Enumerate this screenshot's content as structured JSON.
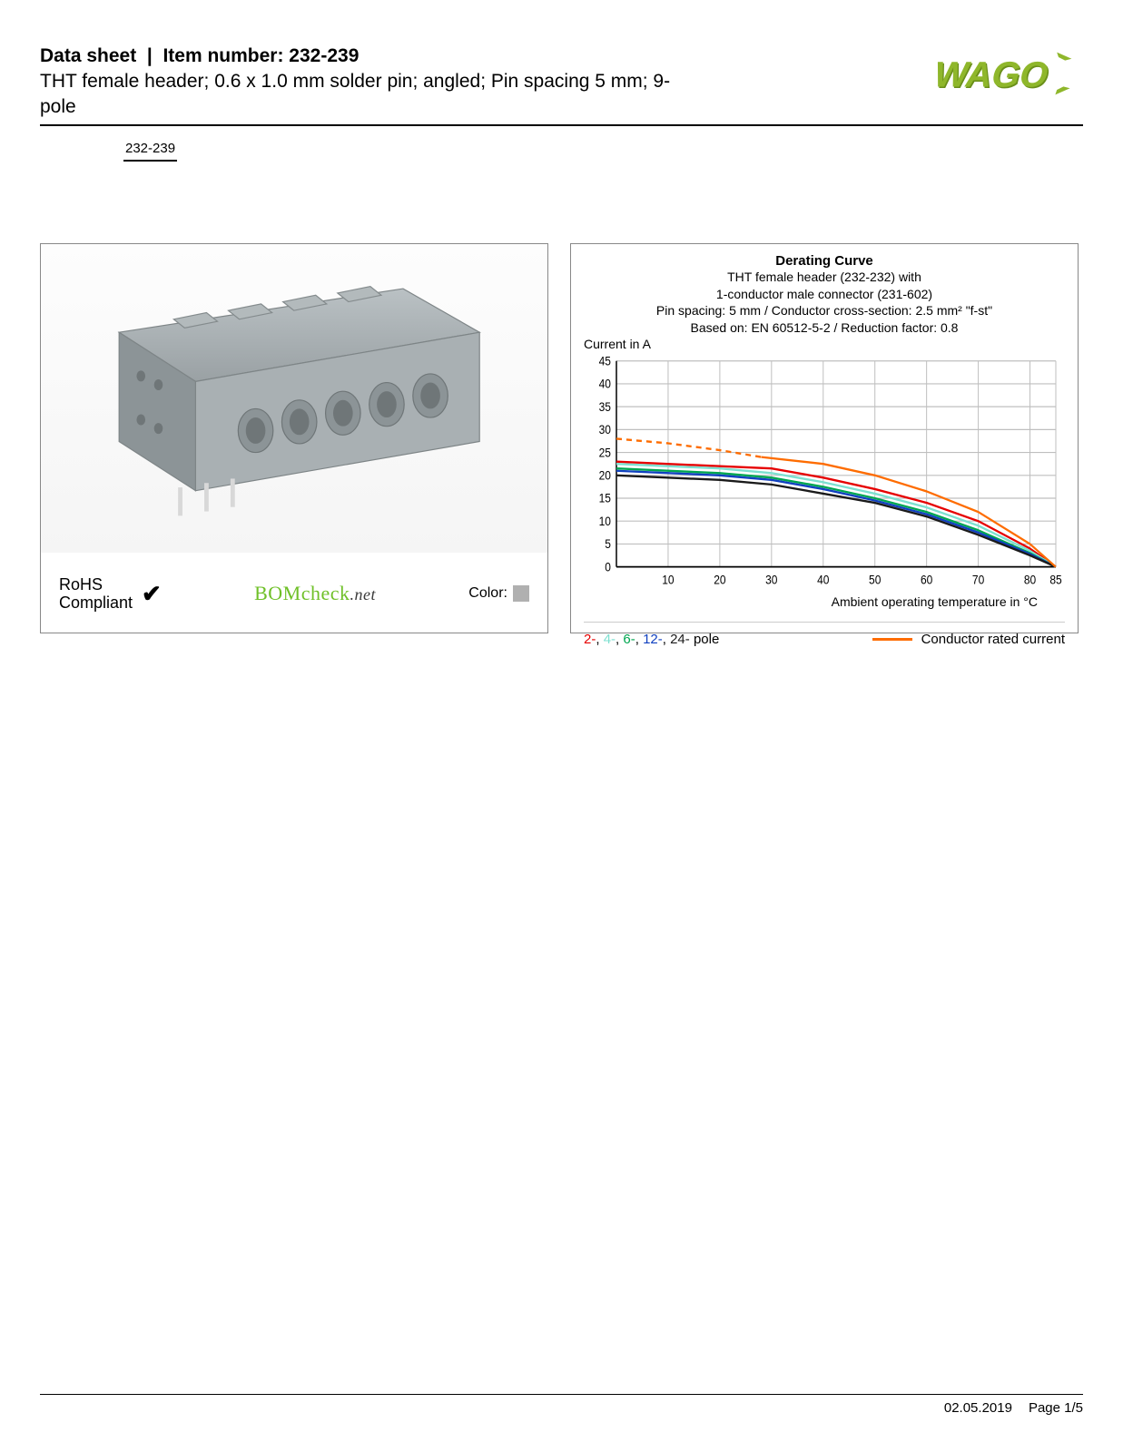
{
  "header": {
    "ds_label": "Data sheet",
    "item_label": "Item number: 232-239",
    "description": "THT female header; 0.6 x 1.0 mm solder pin; angled; Pin spacing 5 mm; 9-pole",
    "badge": "232-239"
  },
  "logo": {
    "text": "WAGO",
    "color": "#8fb72b",
    "shadow": "#6a8f1a"
  },
  "left_panel": {
    "rohs_line1": "RoHS",
    "rohs_line2": "Compliant",
    "check": "✔",
    "bomcheck_main": "BOMcheck",
    "bomcheck_net": ".net",
    "color_label": "Color:",
    "swatch_color": "#b0b0b0",
    "product_render": {
      "body_color": "#a9b0b3",
      "body_shade": "#8c9497",
      "pin_color": "#d8d8d8"
    }
  },
  "chart": {
    "title": "Derating Curve",
    "sub1": "THT female header (232-232) with",
    "sub2": "1-conductor male connector (231-602)",
    "sub3": "Pin spacing: 5 mm / Conductor cross-section: 2.5 mm² \"f-st\"",
    "sub4": "Based on: EN 60512-5-2 / Reduction factor: 0.8",
    "ylabel": "Current in A",
    "xlabel": "Ambient operating temperature in °C",
    "ylim": [
      0,
      45
    ],
    "ytick_step": 5,
    "xlim": [
      0,
      85
    ],
    "xticks": [
      10,
      20,
      30,
      40,
      50,
      60,
      70,
      80,
      85
    ],
    "grid_color": "#bfbfbf",
    "plot_bg": "#ffffff",
    "axis_color": "#000000",
    "series": [
      {
        "name": "2-pole",
        "color": "#e60000",
        "dash": false,
        "points": [
          [
            0,
            23
          ],
          [
            20,
            22
          ],
          [
            30,
            21.5
          ],
          [
            40,
            19.5
          ],
          [
            50,
            17
          ],
          [
            60,
            14
          ],
          [
            70,
            10
          ],
          [
            80,
            4
          ],
          [
            85,
            0
          ]
        ]
      },
      {
        "name": "4-pole",
        "color": "#7de0d0",
        "dash": false,
        "points": [
          [
            0,
            22.5
          ],
          [
            20,
            21.5
          ],
          [
            30,
            20.5
          ],
          [
            40,
            18.5
          ],
          [
            50,
            16
          ],
          [
            60,
            13
          ],
          [
            70,
            9
          ],
          [
            80,
            3.5
          ],
          [
            85,
            0
          ]
        ]
      },
      {
        "name": "6-pole",
        "color": "#00a650",
        "dash": false,
        "points": [
          [
            0,
            21.5
          ],
          [
            20,
            20.5
          ],
          [
            30,
            19.5
          ],
          [
            40,
            17.5
          ],
          [
            50,
            15
          ],
          [
            60,
            12
          ],
          [
            70,
            8
          ],
          [
            80,
            3
          ],
          [
            85,
            0
          ]
        ]
      },
      {
        "name": "12-pole",
        "color": "#1040c0",
        "dash": false,
        "points": [
          [
            0,
            21
          ],
          [
            20,
            20
          ],
          [
            30,
            19
          ],
          [
            40,
            17
          ],
          [
            50,
            14.5
          ],
          [
            60,
            11.5
          ],
          [
            70,
            7.5
          ],
          [
            80,
            2.8
          ],
          [
            85,
            0
          ]
        ]
      },
      {
        "name": "24-pole",
        "color": "#1a1a1a",
        "dash": false,
        "points": [
          [
            0,
            20
          ],
          [
            20,
            19
          ],
          [
            30,
            18
          ],
          [
            40,
            16
          ],
          [
            50,
            14
          ],
          [
            60,
            11
          ],
          [
            70,
            7
          ],
          [
            80,
            2.5
          ],
          [
            85,
            0
          ]
        ]
      },
      {
        "name": "conductor-rated-dash",
        "color": "#fe6c00",
        "dash": true,
        "points": [
          [
            0,
            28
          ],
          [
            10,
            27
          ],
          [
            20,
            25.5
          ],
          [
            28,
            24
          ]
        ]
      },
      {
        "name": "conductor-rated",
        "color": "#fe6c00",
        "dash": false,
        "points": [
          [
            28,
            24
          ],
          [
            40,
            22.5
          ],
          [
            50,
            20
          ],
          [
            60,
            16.5
          ],
          [
            70,
            12
          ],
          [
            80,
            5
          ],
          [
            85,
            0
          ]
        ]
      }
    ],
    "legend_poles": [
      {
        "label": "2-",
        "color": "#e60000"
      },
      {
        "label": "4-",
        "color": "#7de0d0"
      },
      {
        "label": "6-",
        "color": "#00a650"
      },
      {
        "label": "12-",
        "color": "#1040c0"
      },
      {
        "label": "24-",
        "color": "#1a1a1a"
      }
    ],
    "legend_pole_suffix": " pole",
    "legend_cond": "Conductor rated current"
  },
  "footer": {
    "date": "02.05.2019",
    "page": "Page 1/5"
  }
}
